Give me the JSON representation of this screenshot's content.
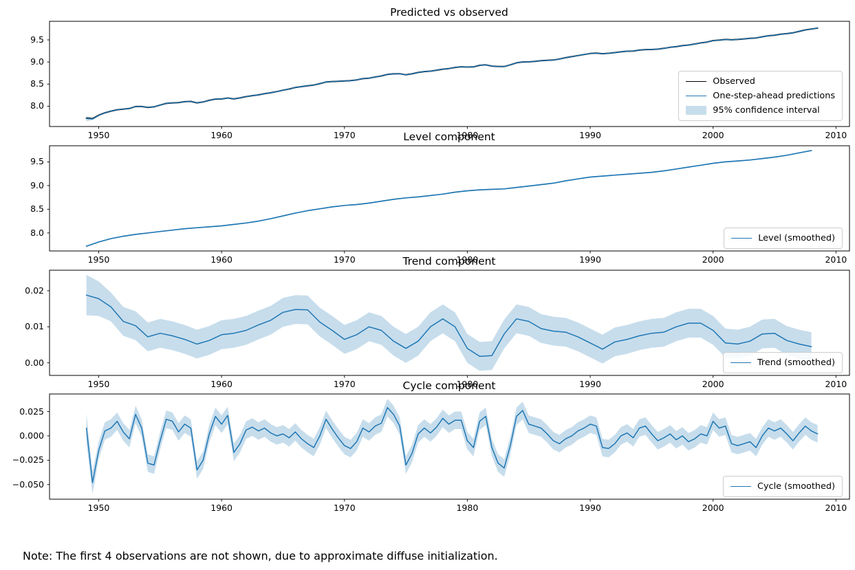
{
  "figure": {
    "note": "Note: The first 4 observations are not shown, due to approximate diffuse initialization.",
    "background": "#ffffff",
    "text_color": "#000000",
    "accent_colors": {
      "line_blue": "#1f77b4",
      "observed_black": "#000000",
      "band_blue_fill": "#d3e5f0",
      "spine": "#000000",
      "legend_border": "#cccccc"
    }
  },
  "chart_data": [
    {
      "type": "line",
      "title": "Predicted vs observed",
      "xlim": [
        1946.0,
        2011.1
      ],
      "ylim": [
        7.54,
        9.92
      ],
      "grid": false,
      "legend_position": "right",
      "x_start": 1949.0,
      "x_step": 0.5,
      "x_ticks": [
        1950,
        1960,
        1970,
        1980,
        1990,
        2000,
        2010
      ],
      "x_tick_labels": [
        "1950",
        "1960",
        "1970",
        "1980",
        "1990",
        "2000",
        "2010"
      ],
      "y_ticks": [
        8.0,
        8.5,
        9.0,
        9.5
      ],
      "y_tick_labels": [
        "8.0",
        "8.5",
        "9.0",
        "9.5"
      ],
      "legend": [
        "Observed",
        "One-step-ahead predictions",
        "95% confidence interval"
      ],
      "series": [
        {
          "name": "Observed",
          "color": "#000000",
          "width": 2.0,
          "values": [
            7.728,
            7.717,
            7.795,
            7.85,
            7.888,
            7.92,
            7.934,
            7.947,
            7.992,
            7.993,
            7.972,
            7.985,
            8.025,
            8.062,
            8.075,
            8.079,
            8.102,
            8.108,
            8.075,
            8.095,
            8.132,
            8.16,
            8.162,
            8.186,
            8.163,
            8.187,
            8.216,
            8.239,
            8.255,
            8.283,
            8.303,
            8.33,
            8.362,
            8.388,
            8.424,
            8.442,
            8.462,
            8.478,
            8.51,
            8.547,
            8.557,
            8.563,
            8.57,
            8.577,
            8.594,
            8.623,
            8.634,
            8.66,
            8.683,
            8.719,
            8.732,
            8.735,
            8.71,
            8.732,
            8.762,
            8.783,
            8.793,
            8.814,
            8.838,
            8.852,
            8.876,
            8.891,
            8.885,
            8.888,
            8.925,
            8.935,
            8.908,
            8.897,
            8.897,
            8.935,
            8.98,
            9.001,
            9.002,
            9.015,
            9.028,
            9.037,
            9.045,
            9.067,
            9.097,
            9.12,
            9.145,
            9.168,
            9.192,
            9.2,
            9.188,
            9.197,
            9.212,
            9.23,
            9.243,
            9.248,
            9.268,
            9.28,
            9.282,
            9.29,
            9.308,
            9.332,
            9.346,
            9.37,
            9.384,
            9.407,
            9.432,
            9.45,
            9.485,
            9.493,
            9.51,
            9.502,
            9.51,
            9.522,
            9.534,
            9.543,
            9.57,
            9.593,
            9.605,
            9.628,
            9.642,
            9.66,
            9.693,
            9.725,
            9.745,
            9.767
          ]
        },
        {
          "name": "One-step-ahead predictions",
          "color": "#1f77b4",
          "width": 1.4,
          "values": [
            7.722,
            7.71,
            7.792,
            7.85,
            7.888,
            7.92,
            7.934,
            7.947,
            7.992,
            7.993,
            7.972,
            7.985,
            8.025,
            8.062,
            8.075,
            8.079,
            8.102,
            8.108,
            8.075,
            8.095,
            8.132,
            8.16,
            8.162,
            8.186,
            8.163,
            8.187,
            8.216,
            8.239,
            8.255,
            8.283,
            8.303,
            8.33,
            8.362,
            8.388,
            8.424,
            8.442,
            8.462,
            8.478,
            8.51,
            8.547,
            8.557,
            8.563,
            8.57,
            8.577,
            8.594,
            8.623,
            8.634,
            8.66,
            8.683,
            8.719,
            8.732,
            8.735,
            8.71,
            8.732,
            8.762,
            8.783,
            8.793,
            8.814,
            8.838,
            8.852,
            8.876,
            8.891,
            8.885,
            8.888,
            8.925,
            8.935,
            8.908,
            8.897,
            8.897,
            8.935,
            8.98,
            9.001,
            9.002,
            9.015,
            9.028,
            9.037,
            9.045,
            9.067,
            9.097,
            9.12,
            9.145,
            9.168,
            9.192,
            9.2,
            9.188,
            9.197,
            9.212,
            9.23,
            9.243,
            9.248,
            9.268,
            9.28,
            9.282,
            9.29,
            9.308,
            9.332,
            9.346,
            9.37,
            9.384,
            9.407,
            9.432,
            9.45,
            9.485,
            9.493,
            9.51,
            9.502,
            9.51,
            9.522,
            9.534,
            9.543,
            9.57,
            9.593,
            9.605,
            9.628,
            9.642,
            9.66,
            9.693,
            9.725,
            9.745,
            9.767
          ]
        }
      ],
      "band": {
        "label": "95% confidence interval",
        "color": "#1f77b4",
        "opacity": 0.25,
        "halfwidth_first": [
          0.06,
          0.028,
          0.018,
          0.014,
          0.012
        ],
        "halfwidth": 0.011
      }
    },
    {
      "type": "line",
      "title": "Level component",
      "xlim": [
        1946.0,
        2011.1
      ],
      "ylim": [
        7.62,
        9.84
      ],
      "grid": false,
      "legend_position": "lower right",
      "x_start": 1949.0,
      "x_step": 1.0,
      "x_ticks": [
        1950,
        1960,
        1970,
        1980,
        1990,
        2000,
        2010
      ],
      "x_tick_labels": [
        "1950",
        "1960",
        "1970",
        "1980",
        "1990",
        "2000",
        "2010"
      ],
      "y_ticks": [
        8.0,
        8.5,
        9.0,
        9.5
      ],
      "y_tick_labels": [
        "8.0",
        "8.5",
        "9.0",
        "9.5"
      ],
      "legend": [
        "Level (smoothed)"
      ],
      "series": [
        {
          "name": "Level (smoothed)",
          "color": "#1f77b4",
          "width": 1.7,
          "values": [
            7.72,
            7.81,
            7.88,
            7.93,
            7.97,
            8.0,
            8.03,
            8.06,
            8.09,
            8.11,
            8.13,
            8.15,
            8.18,
            8.21,
            8.25,
            8.3,
            8.36,
            8.42,
            8.47,
            8.51,
            8.55,
            8.58,
            8.6,
            8.63,
            8.67,
            8.71,
            8.74,
            8.76,
            8.79,
            8.82,
            8.86,
            8.89,
            8.91,
            8.92,
            8.93,
            8.96,
            8.99,
            9.02,
            9.05,
            9.1,
            9.14,
            9.18,
            9.2,
            9.22,
            9.24,
            9.26,
            9.28,
            9.31,
            9.35,
            9.39,
            9.43,
            9.47,
            9.5,
            9.52,
            9.54,
            9.57,
            9.6,
            9.64,
            9.69,
            9.74
          ]
        }
      ],
      "band": null
    },
    {
      "type": "line",
      "title": "Trend component",
      "xlim": [
        1946.0,
        2011.1
      ],
      "ylim": [
        -0.0035,
        0.0257
      ],
      "grid": false,
      "legend_position": "lower right",
      "x_start": 1949.0,
      "x_step": 1.0,
      "x_ticks": [
        1950,
        1960,
        1970,
        1980,
        1990,
        2000,
        2010
      ],
      "x_tick_labels": [
        "1950",
        "1960",
        "1970",
        "1980",
        "1990",
        "2000",
        "2010"
      ],
      "y_ticks": [
        0.0,
        0.01,
        0.02
      ],
      "y_tick_labels": [
        "0.00",
        "0.01",
        "0.02"
      ],
      "legend": [
        "Trend (smoothed)"
      ],
      "series": [
        {
          "name": "Trend (smoothed)",
          "color": "#1f77b4",
          "width": 1.5,
          "values": [
            0.0188,
            0.0178,
            0.0155,
            0.0115,
            0.0103,
            0.0072,
            0.0082,
            0.0075,
            0.0065,
            0.0052,
            0.0062,
            0.0078,
            0.0082,
            0.009,
            0.0105,
            0.0118,
            0.014,
            0.0148,
            0.0147,
            0.0113,
            0.009,
            0.0065,
            0.0078,
            0.01,
            0.009,
            0.006,
            0.004,
            0.006,
            0.01,
            0.0122,
            0.01,
            0.004,
            0.0018,
            0.002,
            0.008,
            0.0122,
            0.0115,
            0.0095,
            0.0088,
            0.0085,
            0.0072,
            0.0055,
            0.0038,
            0.0058,
            0.0065,
            0.0075,
            0.0082,
            0.0085,
            0.01,
            0.011,
            0.011,
            0.009,
            0.0055,
            0.0052,
            0.006,
            0.008,
            0.0082,
            0.0062,
            0.0052,
            0.0045
          ]
        }
      ],
      "band": {
        "label": "95% confidence interval",
        "color": "#1f77b4",
        "opacity": 0.25,
        "halfwidth_first": [
          0.0056,
          0.0048
        ],
        "halfwidth": 0.004
      }
    },
    {
      "type": "line",
      "title": "Cycle component",
      "xlim": [
        1946.0,
        2011.1
      ],
      "ylim": [
        -0.065,
        0.043
      ],
      "grid": false,
      "legend_position": "lower right",
      "x_start": 1949.0,
      "x_step": 0.5,
      "x_ticks": [
        1950,
        1960,
        1970,
        1980,
        1990,
        2000,
        2010
      ],
      "x_tick_labels": [
        "1950",
        "1960",
        "1970",
        "1980",
        "1990",
        "2000",
        "2010"
      ],
      "y_ticks": [
        -0.05,
        -0.025,
        0.0,
        0.025
      ],
      "y_tick_labels": [
        "−0.050",
        "−0.025",
        "0.000",
        "0.025"
      ],
      "legend": [
        "Cycle (smoothed)"
      ],
      "series": [
        {
          "name": "Cycle (smoothed)",
          "color": "#1f77b4",
          "width": 1.5,
          "values": [
            0.008,
            -0.048,
            -0.015,
            0.005,
            0.008,
            0.015,
            0.004,
            -0.003,
            0.022,
            0.008,
            -0.028,
            -0.03,
            -0.005,
            0.017,
            0.015,
            0.004,
            0.012,
            0.008,
            -0.035,
            -0.025,
            0.002,
            0.02,
            0.012,
            0.021,
            -0.017,
            -0.008,
            0.006,
            0.009,
            0.005,
            0.008,
            0.003,
            0.0,
            0.002,
            -0.002,
            0.004,
            -0.003,
            -0.008,
            -0.012,
            0.0,
            0.017,
            0.007,
            -0.002,
            -0.01,
            -0.013,
            -0.006,
            0.008,
            0.004,
            0.01,
            0.013,
            0.029,
            0.022,
            0.01,
            -0.03,
            -0.018,
            0.002,
            0.008,
            0.003,
            0.009,
            0.018,
            0.012,
            0.016,
            0.016,
            -0.005,
            -0.012,
            0.015,
            0.02,
            -0.012,
            -0.028,
            -0.033,
            -0.01,
            0.02,
            0.026,
            0.012,
            0.01,
            0.008,
            0.002,
            -0.005,
            -0.008,
            -0.003,
            0.0,
            0.005,
            0.008,
            0.012,
            0.01,
            -0.012,
            -0.013,
            -0.008,
            0.0,
            0.003,
            -0.002,
            0.008,
            0.01,
            0.002,
            -0.005,
            -0.002,
            0.002,
            -0.004,
            0.0,
            -0.006,
            -0.003,
            0.002,
            0.0,
            0.015,
            0.008,
            0.01,
            -0.008,
            -0.01,
            -0.008,
            -0.006,
            -0.012,
            0.0,
            0.008,
            0.005,
            0.008,
            0.002,
            -0.005,
            0.003,
            0.01,
            0.005,
            0.002
          ]
        }
      ],
      "band": {
        "label": "95% confidence interval",
        "color": "#1f77b4",
        "opacity": 0.25,
        "halfwidth_first": [
          0.015,
          0.012
        ],
        "halfwidth": 0.009
      }
    }
  ]
}
